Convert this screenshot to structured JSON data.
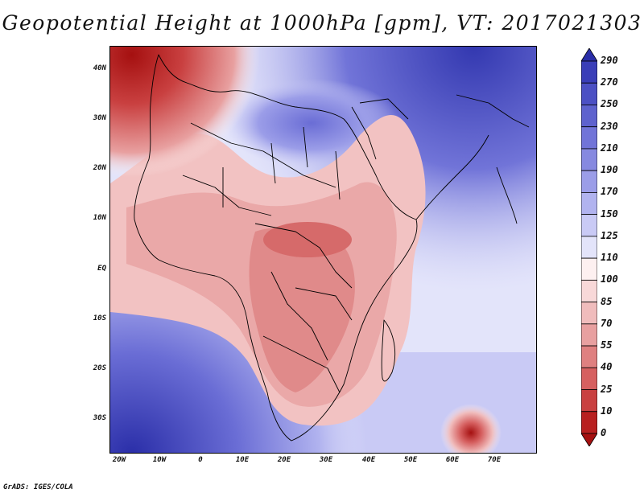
{
  "title": "Geopotential Height at 1000hPa [gpm], VT: 2017021303",
  "credit": "GrADS: IGES/COLA",
  "lat_ticks": [
    "40N",
    "30N",
    "20N",
    "10N",
    "EQ",
    "10S",
    "20S",
    "30S"
  ],
  "lon_ticks": [
    "20W",
    "10W",
    "0",
    "10E",
    "20E",
    "30E",
    "40E",
    "50E",
    "60E",
    "70E"
  ],
  "colorbar": {
    "labels": [
      "290",
      "270",
      "250",
      "230",
      "210",
      "190",
      "170",
      "150",
      "125",
      "110",
      "100",
      "85",
      "70",
      "55",
      "40",
      "25",
      "10",
      "0"
    ],
    "colors": [
      "#2a2ea8",
      "#3a3eb8",
      "#4c50c4",
      "#5e62ce",
      "#7174d8",
      "#8689e0",
      "#9b9de8",
      "#b1b3ef",
      "#c9caf5",
      "#e3e4fa",
      "#fdf0f0",
      "#f8d8d8",
      "#f0bcbc",
      "#e8a0a0",
      "#df8080",
      "#d66060",
      "#c94040",
      "#b82020",
      "#a51010"
    ]
  },
  "map": {
    "region": "Africa",
    "variable": "Geopotential Height at 1000hPa",
    "units": "gpm",
    "valid_time": "2017021303"
  }
}
